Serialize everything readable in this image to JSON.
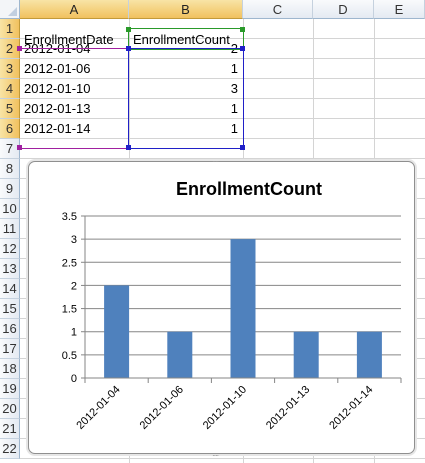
{
  "columns": [
    "A",
    "B",
    "C",
    "D",
    "E"
  ],
  "rows": [
    "1",
    "2",
    "3",
    "4",
    "5",
    "6",
    "7",
    "8",
    "9",
    "10",
    "11",
    "12",
    "13",
    "14",
    "15",
    "16",
    "17",
    "18",
    "19",
    "20",
    "21",
    "22"
  ],
  "cells": {
    "header_a": "EnrollmentDate",
    "header_b": "EnrollmentCount",
    "data": [
      {
        "date": "2012-01-04",
        "count": "2"
      },
      {
        "date": "2012-01-06",
        "count": "1"
      },
      {
        "date": "2012-01-10",
        "count": "3"
      },
      {
        "date": "2012-01-13",
        "count": "1"
      },
      {
        "date": "2012-01-14",
        "count": "1"
      }
    ]
  },
  "colors": {
    "bar": "#4f81bd",
    "date_range": "#a020a0",
    "count_range": "#2020c8",
    "header_range": "#2a9a2a",
    "selected_header": "#f1c15f"
  },
  "chart_data": {
    "type": "bar",
    "title": "EnrollmentCount",
    "categories": [
      "2012-01-04",
      "2012-01-06",
      "2012-01-10",
      "2012-01-13",
      "2012-01-14"
    ],
    "values": [
      2,
      1,
      3,
      1,
      1
    ],
    "ylim": [
      0,
      3.5
    ],
    "yticks": [
      "0",
      "0.5",
      "1",
      "1.5",
      "2",
      "2.5",
      "3",
      "3.5"
    ],
    "xlabel": "",
    "ylabel": "",
    "grid": true,
    "legend": "none"
  }
}
